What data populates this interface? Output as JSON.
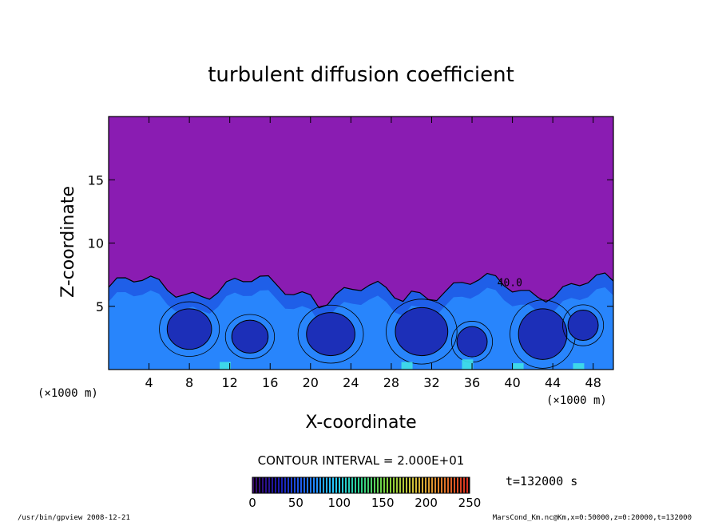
{
  "chart_data": {
    "type": "heatmap",
    "title": "turbulent diffusion coefficient",
    "xlabel": "X-coordinate",
    "ylabel": "Z-coordinate",
    "x_unit": "(×1000 m)",
    "x_ticks": [
      4,
      8,
      12,
      16,
      20,
      24,
      28,
      32,
      36,
      40,
      44,
      48
    ],
    "y_ticks": [
      5,
      10,
      15
    ],
    "xlim": [
      0,
      50
    ],
    "ylim": [
      0,
      20
    ],
    "contour_interval": "CONTOUR INTERVAL = 2.000E+01",
    "contour_label": "40.0",
    "time_label": "t=132000 s",
    "colorbar": {
      "range": [
        0,
        250
      ],
      "ticks": [
        0,
        50,
        100,
        150,
        200,
        250
      ],
      "colors": [
        "#3a0a6a",
        "#1a1ab0",
        "#1f6fff",
        "#27c8ff",
        "#2bd28a",
        "#7fd23a",
        "#d2c23a",
        "#e0802a",
        "#d83020"
      ]
    },
    "background_color": "#8a1cb2",
    "turbulent_layer_top_km_approx": 6.5
  },
  "footer": {
    "left": "/usr/bin/gpview   2008-12-21",
    "right": "MarsCond_Km.nc@Km,x=0:50000,z=0:20000,t=132000"
  }
}
